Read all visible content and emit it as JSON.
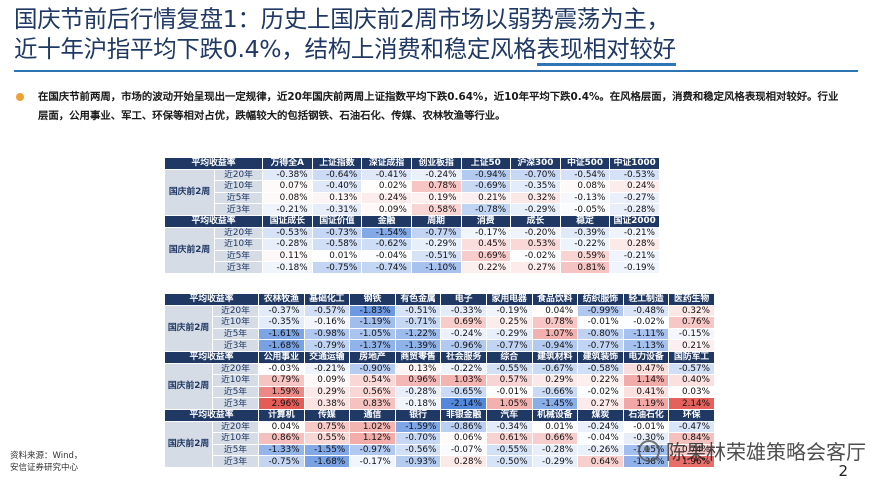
{
  "title": {
    "line1": "国庆节前后行情复盘1：历史上国庆前2周市场以弱势震荡为主，",
    "line2a": "近十年沪指平均下跌0.4%，结构上消费和稳定风格",
    "line2b": "表现相对较好"
  },
  "intro": "在国庆节前两周，市场的波动开始呈现出一定规律，近20年国庆前两周上证指数平均下跌0.64%，近10年平均下跌0.4%。在风格层面，消费和稳定风格表现相对较好。行业层面，公用事业、军工、环保等相对占优，跌幅较大的包括钢铁、石油石化、传媒、农林牧渔等行业。",
  "source": [
    "资料来源：Wind，",
    "安信证券研究中心"
  ],
  "page_number": "2",
  "watermark": "陈果林荣雄策略会客厅",
  "colors": {
    "header": "#1f3864",
    "label": "#d6dce5",
    "negative": "#2f6fd6",
    "positive": "#e0403a"
  },
  "row_labels": [
    "近20年",
    "近10年",
    "近5年",
    "近3年"
  ],
  "group_label": "国庆前2周",
  "corner_label": "平均收益率",
  "tables": [
    {
      "blocks": [
        {
          "columns": [
            "万得全A",
            "上证指数",
            "深证成指",
            "创业板指",
            "上证50",
            "沪深300",
            "中证500",
            "中证1000"
          ],
          "rows": [
            [
              "-0.38%",
              "-0.64%",
              "-0.41%",
              "-0.24%",
              "-0.94%",
              "-0.70%",
              "-0.54%",
              "-0.53%"
            ],
            [
              "0.07%",
              "-0.40%",
              "0.02%",
              "0.78%",
              "-0.69%",
              "-0.35%",
              "0.08%",
              "0.24%"
            ],
            [
              "0.08%",
              "0.13%",
              "0.24%",
              "0.19%",
              "0.21%",
              "0.32%",
              "-0.13%",
              "-0.27%"
            ],
            [
              "-0.21%",
              "-0.31%",
              "0.09%",
              "0.58%",
              "-0.78%",
              "-0.29%",
              "-0.05%",
              "-0.28%"
            ]
          ]
        },
        {
          "columns": [
            "国证成长",
            "国证价值",
            "金融",
            "周期",
            "消费",
            "成长",
            "稳定",
            "国证2000"
          ],
          "rows": [
            [
              "-0.53%",
              "-0.73%",
              "-1.54%",
              "-0.77%",
              "-0.17%",
              "-0.20%",
              "-0.39%",
              "-0.21%"
            ],
            [
              "-0.28%",
              "-0.58%",
              "-0.62%",
              "-0.29%",
              "0.45%",
              "0.53%",
              "-0.22%",
              "0.28%"
            ],
            [
              "0.11%",
              "0.01%",
              "-0.04%",
              "-0.51%",
              "0.69%",
              "-0.02%",
              "0.59%",
              "-0.21%"
            ],
            [
              "-0.18%",
              "-0.75%",
              "-0.74%",
              "-1.10%",
              "0.22%",
              "0.27%",
              "0.81%",
              "-0.19%"
            ]
          ]
        }
      ]
    },
    {
      "blocks": [
        {
          "columns": [
            "农林牧渔",
            "基础化工",
            "钢铁",
            "有色金属",
            "电子",
            "家用电器",
            "食品饮料",
            "纺织服饰",
            "轻工制造",
            "医药生物"
          ],
          "rows": [
            [
              "-0.37%",
              "-0.57%",
              "-1.83%",
              "-0.51%",
              "-0.33%",
              "-0.19%",
              "0.04%",
              "-0.99%",
              "-0.48%",
              "0.32%"
            ],
            [
              "-0.35%",
              "-0.16%",
              "-1.19%",
              "-0.71%",
              "0.69%",
              "0.25%",
              "0.78%",
              "-0.01%",
              "-0.02%",
              "0.76%"
            ],
            [
              "-1.61%",
              "-0.98%",
              "-1.05%",
              "-1.22%",
              "-0.24%",
              "-0.29%",
              "1.07%",
              "-0.80%",
              "-1.11%",
              "-0.15%"
            ],
            [
              "-1.68%",
              "-0.79%",
              "-1.37%",
              "-1.39%",
              "-0.96%",
              "-0.77%",
              "-0.94%",
              "-0.77%",
              "-1.13%",
              "0.21%"
            ]
          ]
        },
        {
          "columns": [
            "公用事业",
            "交通运输",
            "房地产",
            "商贸零售",
            "社会服务",
            "综合",
            "建筑材料",
            "建筑装饰",
            "电力设备",
            "国防军工"
          ],
          "rows": [
            [
              "-0.03%",
              "-0.21%",
              "-0.90%",
              "0.13%",
              "-0.22%",
              "-0.55%",
              "-0.67%",
              "-0.58%",
              "0.47%",
              "-0.57%"
            ],
            [
              "0.79%",
              "0.09%",
              "0.54%",
              "0.96%",
              "1.03%",
              "0.57%",
              "0.29%",
              "0.22%",
              "1.14%",
              "0.40%"
            ],
            [
              "1.59%",
              "0.29%",
              "0.56%",
              "-0.28%",
              "-0.65%",
              "-0.01%",
              "-0.66%",
              "-0.02%",
              "0.41%",
              "0.03%"
            ],
            [
              "2.96%",
              "0.38%",
              "0.83%",
              "-0.18%",
              "-2.14%",
              "1.05%",
              "-1.45%",
              "0.27%",
              "1.19%",
              "2.14%"
            ]
          ]
        },
        {
          "columns": [
            "计算机",
            "传媒",
            "通信",
            "银行",
            "非银金融",
            "汽车",
            "机械设备",
            "煤炭",
            "石油石化",
            "环保"
          ],
          "rows": [
            [
              "0.04%",
              "0.75%",
              "1.02%",
              "-1.59%",
              "-0.86%",
              "-0.34%",
              "0.01%",
              "-0.24%",
              "-0.01%",
              "-0.47%"
            ],
            [
              "0.86%",
              "0.55%",
              "1.12%",
              "-0.70%",
              "0.06%",
              "0.61%",
              "0.66%",
              "-0.04%",
              "-0.30%",
              "0.84%"
            ],
            [
              "-1.33%",
              "-1.55%",
              "-0.97%",
              "-0.56%",
              "-0.07%",
              "-0.55%",
              "-0.28%",
              "-0.26%",
              "-1.15%",
              "0.74%"
            ],
            [
              "-0.75%",
              "-1.68%",
              "-0.17%",
              "-0.93%",
              "0.28%",
              "-0.50%",
              "-0.29%",
              "0.64%",
              "-1.38%",
              "1.96%"
            ]
          ]
        }
      ]
    }
  ]
}
